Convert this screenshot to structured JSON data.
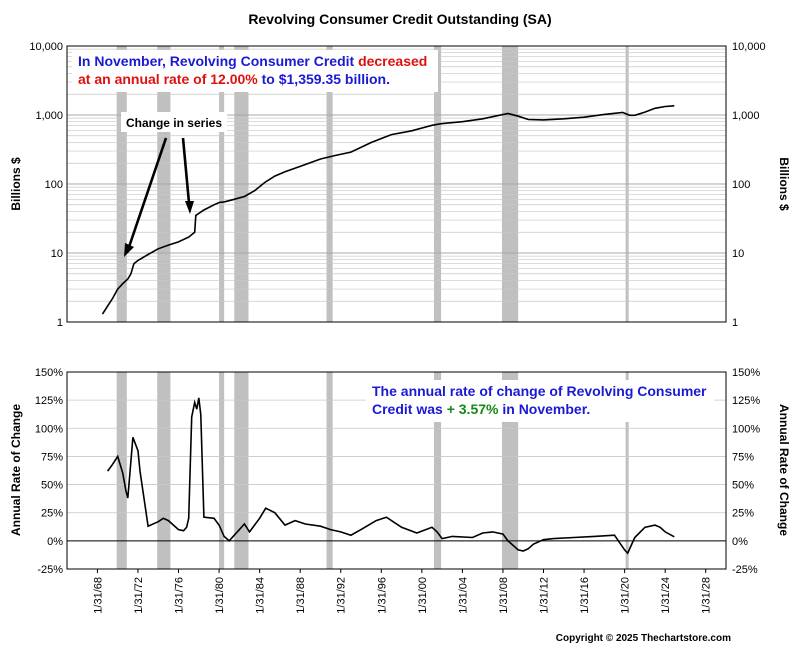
{
  "chart_data": [
    {
      "type": "line",
      "title": "Revolving Consumer Credit Outstanding (SA)",
      "ylabel": "Billions $",
      "yscale": "log",
      "ylim": [
        1,
        10000
      ],
      "yticks": [
        "1",
        "10",
        "100",
        "1,000",
        "10,000"
      ],
      "xlim": [
        1965.0,
        2030.0
      ],
      "grid": true,
      "annotation": {
        "line1_blue": "In November, Revolving Consumer Credit ",
        "line1_red": "decreased",
        "line2_red": "at an annual rate of 12.00%",
        "line2_blue": " to $1,359.35 billion."
      },
      "callout": "Change in series",
      "series": [
        {
          "x": [
            1968.5,
            1969.0,
            1969.5,
            1970.0,
            1970.5,
            1971.0,
            1971.3,
            1971.6,
            1972.0,
            1973.0,
            1974.0,
            1975.0,
            1976.0,
            1977.0,
            1977.6,
            1977.7,
            1978.5,
            1979.5,
            1980.0,
            1980.5,
            1981.5,
            1982.5,
            1983.5,
            1984.5,
            1985.5,
            1986.5,
            1988.0,
            1990.0,
            1991.5,
            1993.0,
            1995.0,
            1997.0,
            1999.0,
            2001.0,
            2002.0,
            2004.0,
            2006.0,
            2008.5,
            2009.5,
            2010.5,
            2012.0,
            2014.0,
            2016.0,
            2018.0,
            2019.8,
            2020.5,
            2021.0,
            2022.0,
            2023.0,
            2024.0,
            2024.9
          ],
          "values": [
            1.3,
            1.7,
            2.2,
            3.0,
            3.6,
            4.2,
            5.0,
            7.0,
            7.8,
            9.5,
            11.5,
            13.0,
            14.5,
            17.0,
            20.0,
            35.0,
            42.0,
            50.0,
            54.0,
            55.0,
            60.0,
            66.0,
            80.0,
            105.0,
            130.0,
            150.0,
            180.0,
            230.0,
            260.0,
            290.0,
            400.0,
            520.0,
            590.0,
            710.0,
            750.0,
            800.0,
            880.0,
            1050.0,
            960.0,
            860.0,
            850.0,
            880.0,
            930.0,
            1020.0,
            1090.0,
            990.0,
            990.0,
            1100.0,
            1250.0,
            1330.0,
            1360.0
          ]
        }
      ]
    },
    {
      "type": "line",
      "ylabel": "Annual Rate of Change",
      "ylim": [
        -25,
        150
      ],
      "yticks": [
        "-25%",
        "0%",
        "25%",
        "50%",
        "75%",
        "100%",
        "125%",
        "150%"
      ],
      "xlim": [
        1965.0,
        2030.0
      ],
      "categories": [
        "1/31/68",
        "1/31/72",
        "1/31/76",
        "1/31/80",
        "1/31/84",
        "1/31/88",
        "1/31/92",
        "1/31/96",
        "1/31/00",
        "1/31/04",
        "1/31/08",
        "1/31/12",
        "1/31/16",
        "1/31/20",
        "1/31/24",
        "1/31/28"
      ],
      "annotation": {
        "line1_blue": "The annual rate of change of Revolving Consumer",
        "line2_blue": "Credit was ",
        "line2_green": "+ 3.57%",
        "line2_blue_end": " in November."
      },
      "series": [
        {
          "x": [
            1969.0,
            1969.5,
            1970.0,
            1970.5,
            1970.8,
            1971.0,
            1971.2,
            1971.5,
            1972.0,
            1972.2,
            1973.0,
            1974.0,
            1974.5,
            1975.0,
            1976.0,
            1976.5,
            1976.8,
            1977.0,
            1977.3,
            1977.6,
            1977.8,
            1978.0,
            1978.2,
            1978.5,
            1979.5,
            1980.0,
            1980.5,
            1981.0,
            1981.5,
            1982.0,
            1982.5,
            1983.0,
            1984.0,
            1984.6,
            1985.5,
            1986.5,
            1987.5,
            1988.5,
            1990.0,
            1991.0,
            1992.0,
            1993.0,
            1994.0,
            1995.5,
            1996.5,
            1998.0,
            1999.5,
            2001.0,
            2001.5,
            2002.0,
            2003.0,
            2005.0,
            2006.0,
            2007.0,
            2008.0,
            2008.5,
            2009.0,
            2009.5,
            2010.0,
            2010.5,
            2011.0,
            2012.0,
            2013.0,
            2015.0,
            2017.0,
            2019.0,
            2020.0,
            2020.3,
            2020.6,
            2021.0,
            2022.0,
            2023.0,
            2023.5,
            2024.0,
            2024.9
          ],
          "values": [
            62.0,
            68.0,
            75.0,
            60.0,
            45.0,
            38.0,
            60.0,
            92.0,
            80.0,
            62.0,
            13.0,
            17.0,
            20.0,
            18.0,
            10.0,
            9.0,
            12.0,
            20.0,
            110.0,
            123.0,
            117.0,
            127.0,
            112.0,
            21.0,
            20.0,
            14.0,
            4.0,
            0.0,
            5.0,
            10.0,
            15.0,
            8.0,
            20.0,
            29.0,
            25.0,
            14.0,
            18.0,
            15.0,
            13.0,
            10.0,
            8.0,
            5.0,
            10.0,
            18.0,
            21.0,
            12.0,
            7.0,
            12.0,
            8.0,
            2.0,
            4.0,
            3.0,
            7.0,
            8.0,
            6.0,
            0.0,
            -4.0,
            -8.0,
            -9.0,
            -7.0,
            -3.0,
            1.0,
            2.0,
            3.0,
            4.0,
            5.0,
            -8.0,
            -11.0,
            -5.0,
            3.0,
            12.0,
            14.0,
            12.0,
            8.0,
            3.57
          ]
        }
      ]
    }
  ],
  "recessions": [
    [
      1969.9,
      1970.9
    ],
    [
      1973.9,
      1975.2
    ],
    [
      1980.0,
      1980.5
    ],
    [
      1981.5,
      1982.9
    ],
    [
      1990.6,
      1991.2
    ],
    [
      2001.2,
      2001.9
    ],
    [
      2007.9,
      2009.5
    ],
    [
      2020.1,
      2020.4
    ]
  ],
  "copyright": "Copyright © 2025 Thechartstore.com",
  "colors": {
    "recession": "#c0c0c0",
    "line": "#000000",
    "grid": "#c8c8c8",
    "blue": "#1a1ad4",
    "red": "#e01010",
    "green": "#138a13"
  }
}
